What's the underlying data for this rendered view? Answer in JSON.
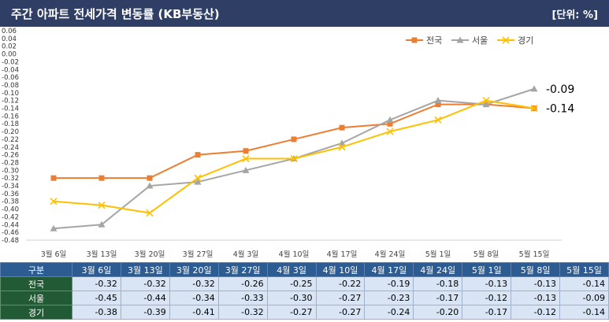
{
  "header": {
    "title": "주간 아파트 전세가격 변동률 (KB부동산)",
    "unit": "[단위: %]"
  },
  "colors": {
    "전국": "#ed7d31",
    "서울": "#a5a5a5",
    "경기": "#ffc000"
  },
  "table": {
    "corner": "구분"
  },
  "chart_data": {
    "type": "line",
    "categories": [
      "3월 6일",
      "3월 13일",
      "3월 20일",
      "3월 27일",
      "4월 3일",
      "4월 10일",
      "4월 17일",
      "4월 24일",
      "5월 1일",
      "5월 8일",
      "5월 15일"
    ],
    "series": [
      {
        "name": "전국",
        "values": [
          -0.32,
          -0.32,
          -0.32,
          -0.26,
          -0.25,
          -0.22,
          -0.19,
          -0.18,
          -0.13,
          -0.13,
          -0.14
        ]
      },
      {
        "name": "서울",
        "values": [
          -0.45,
          -0.44,
          -0.34,
          -0.33,
          -0.3,
          -0.27,
          -0.23,
          -0.17,
          -0.12,
          -0.13,
          -0.09
        ]
      },
      {
        "name": "경기",
        "values": [
          -0.38,
          -0.39,
          -0.41,
          -0.32,
          -0.27,
          -0.27,
          -0.24,
          -0.2,
          -0.17,
          -0.12,
          -0.14
        ]
      }
    ],
    "ylim": [
      -0.48,
      0.06
    ],
    "ytick_step": 0.02,
    "legend_position": "top-right",
    "end_labels": [
      {
        "series": "서울",
        "text": "-0.09"
      },
      {
        "series": "전국",
        "text": "-0.14"
      }
    ]
  }
}
